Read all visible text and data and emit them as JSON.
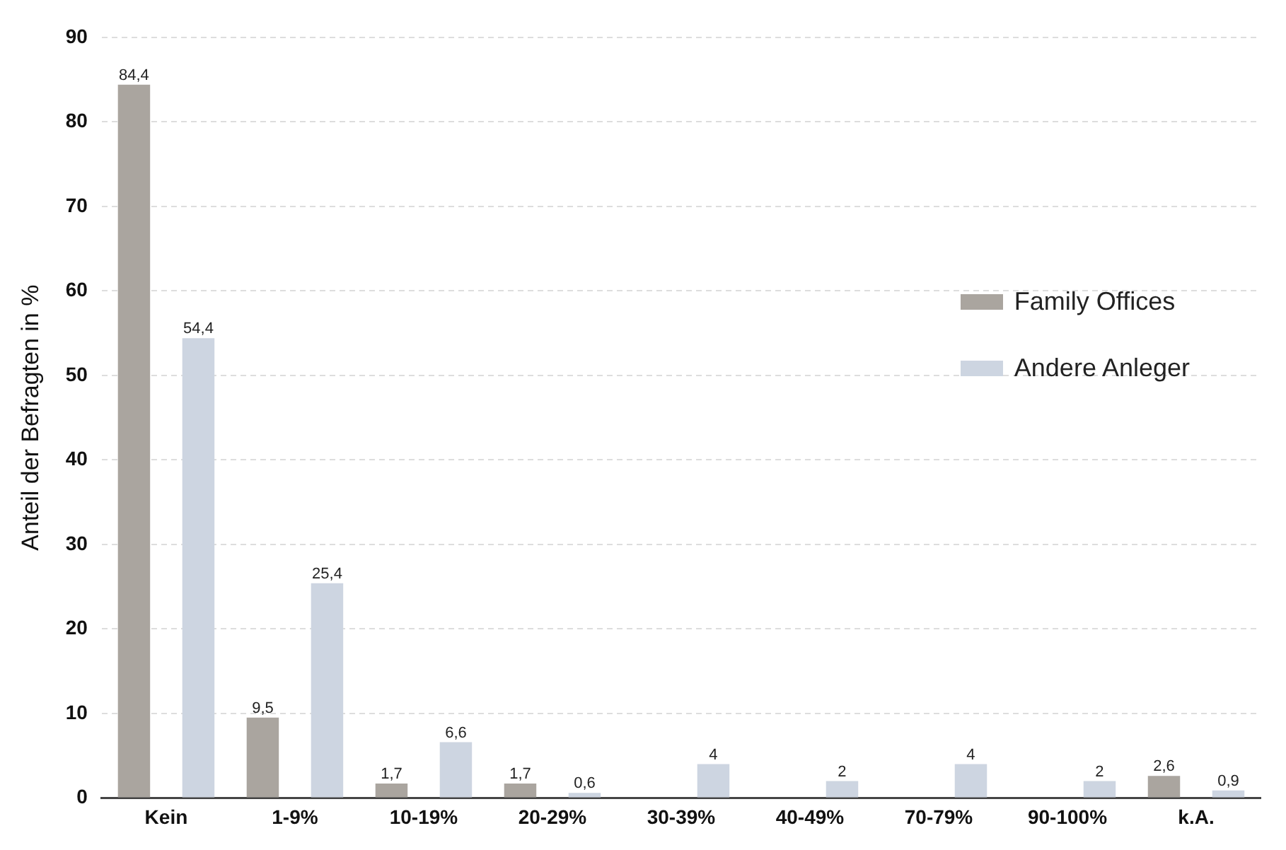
{
  "chart_data": {
    "type": "bar",
    "ylabel": "Anteil der Befragten in %",
    "categories": [
      "Kein",
      "1-9%",
      "10-19%",
      "20-29%",
      "30-39%",
      "40-49%",
      "70-79%",
      "90-100%",
      "k.A."
    ],
    "series": [
      {
        "name": "Family Offices",
        "color": "#aaa59f",
        "values": [
          84.4,
          9.5,
          1.7,
          1.7,
          null,
          null,
          null,
          null,
          2.6
        ],
        "value_labels": [
          "84,4",
          "9,5",
          "1,7",
          "1,7",
          null,
          null,
          null,
          null,
          "2,6"
        ]
      },
      {
        "name": "Andere Anleger",
        "color": "#cdd5e1",
        "values": [
          54.4,
          25.4,
          6.6,
          0.6,
          4,
          2,
          4,
          2,
          0.9
        ],
        "value_labels": [
          "54,4",
          "25,4",
          "6,6",
          "0,6",
          "4",
          "2",
          "4",
          "2",
          "0,9"
        ]
      }
    ],
    "ylim": [
      0,
      90
    ],
    "yticks": [
      0,
      10,
      20,
      30,
      40,
      50,
      60,
      70,
      80,
      90
    ],
    "grid": "y",
    "legend": "right"
  }
}
